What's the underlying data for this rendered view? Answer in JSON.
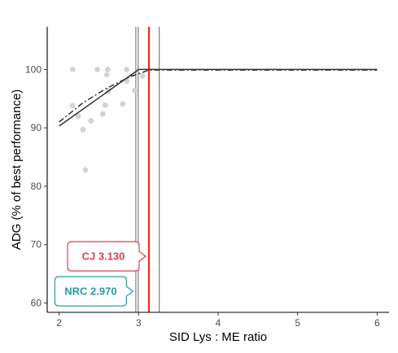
{
  "chart_data": {
    "type": "scatter",
    "title": "",
    "xlabel": "SID Lys : ME ratio",
    "ylabel": "ADG (% of best performance)",
    "xlim": [
      1.85,
      6.15
    ],
    "ylim": [
      58.4,
      107.3
    ],
    "x_ticks": [
      2,
      3,
      4,
      5,
      6
    ],
    "y_ticks": [
      60,
      70,
      80,
      90,
      100
    ],
    "grid": false,
    "colors": {
      "points": "#d3d3d3",
      "fit_lines": "#333333",
      "cj_line": "#ff2222",
      "cj_label": "#e0404a",
      "nrc_label": "#2a9d9a",
      "ref_lines": "#555555"
    },
    "points": [
      {
        "x": 2.17,
        "y": 100.0
      },
      {
        "x": 2.17,
        "y": 93.8
      },
      {
        "x": 2.24,
        "y": 92.0
      },
      {
        "x": 2.3,
        "y": 89.7
      },
      {
        "x": 2.33,
        "y": 82.8
      },
      {
        "x": 2.4,
        "y": 91.2
      },
      {
        "x": 2.48,
        "y": 100.0
      },
      {
        "x": 2.55,
        "y": 92.4
      },
      {
        "x": 2.58,
        "y": 93.9
      },
      {
        "x": 2.6,
        "y": 99.1
      },
      {
        "x": 2.61,
        "y": 100.0
      },
      {
        "x": 2.62,
        "y": 96.4
      },
      {
        "x": 2.8,
        "y": 94.1
      },
      {
        "x": 2.85,
        "y": 100.0
      },
      {
        "x": 2.85,
        "y": 98.0
      },
      {
        "x": 2.95,
        "y": 96.4
      },
      {
        "x": 3.05,
        "y": 98.9
      }
    ],
    "series": [
      {
        "style": "solid",
        "x": [
          2.0,
          2.97,
          3.0,
          6.0
        ],
        "y": [
          90.3,
          99.7,
          100.0,
          100.0
        ]
      },
      {
        "style": "dashdot",
        "x": [
          2.0,
          2.3,
          2.6,
          2.9,
          3.05,
          3.13,
          6.0
        ],
        "y": [
          91.0,
          94.3,
          96.8,
          98.8,
          99.5,
          99.9,
          99.9
        ]
      }
    ],
    "vertical_lines": [
      {
        "x": 2.965,
        "color": "ref"
      },
      {
        "x": 2.995,
        "color": "ref"
      },
      {
        "x": 3.13,
        "color": "cj"
      },
      {
        "x": 3.26,
        "color": "ref"
      }
    ],
    "annotations": [
      {
        "name": "cj-callout",
        "text": "CJ  3.130",
        "x": 3.13,
        "y": 68.0,
        "color": "cj"
      },
      {
        "name": "nrc-callout",
        "text": "NRC 2.970",
        "x": 2.97,
        "y": 62.0,
        "color": "nrc"
      }
    ]
  }
}
